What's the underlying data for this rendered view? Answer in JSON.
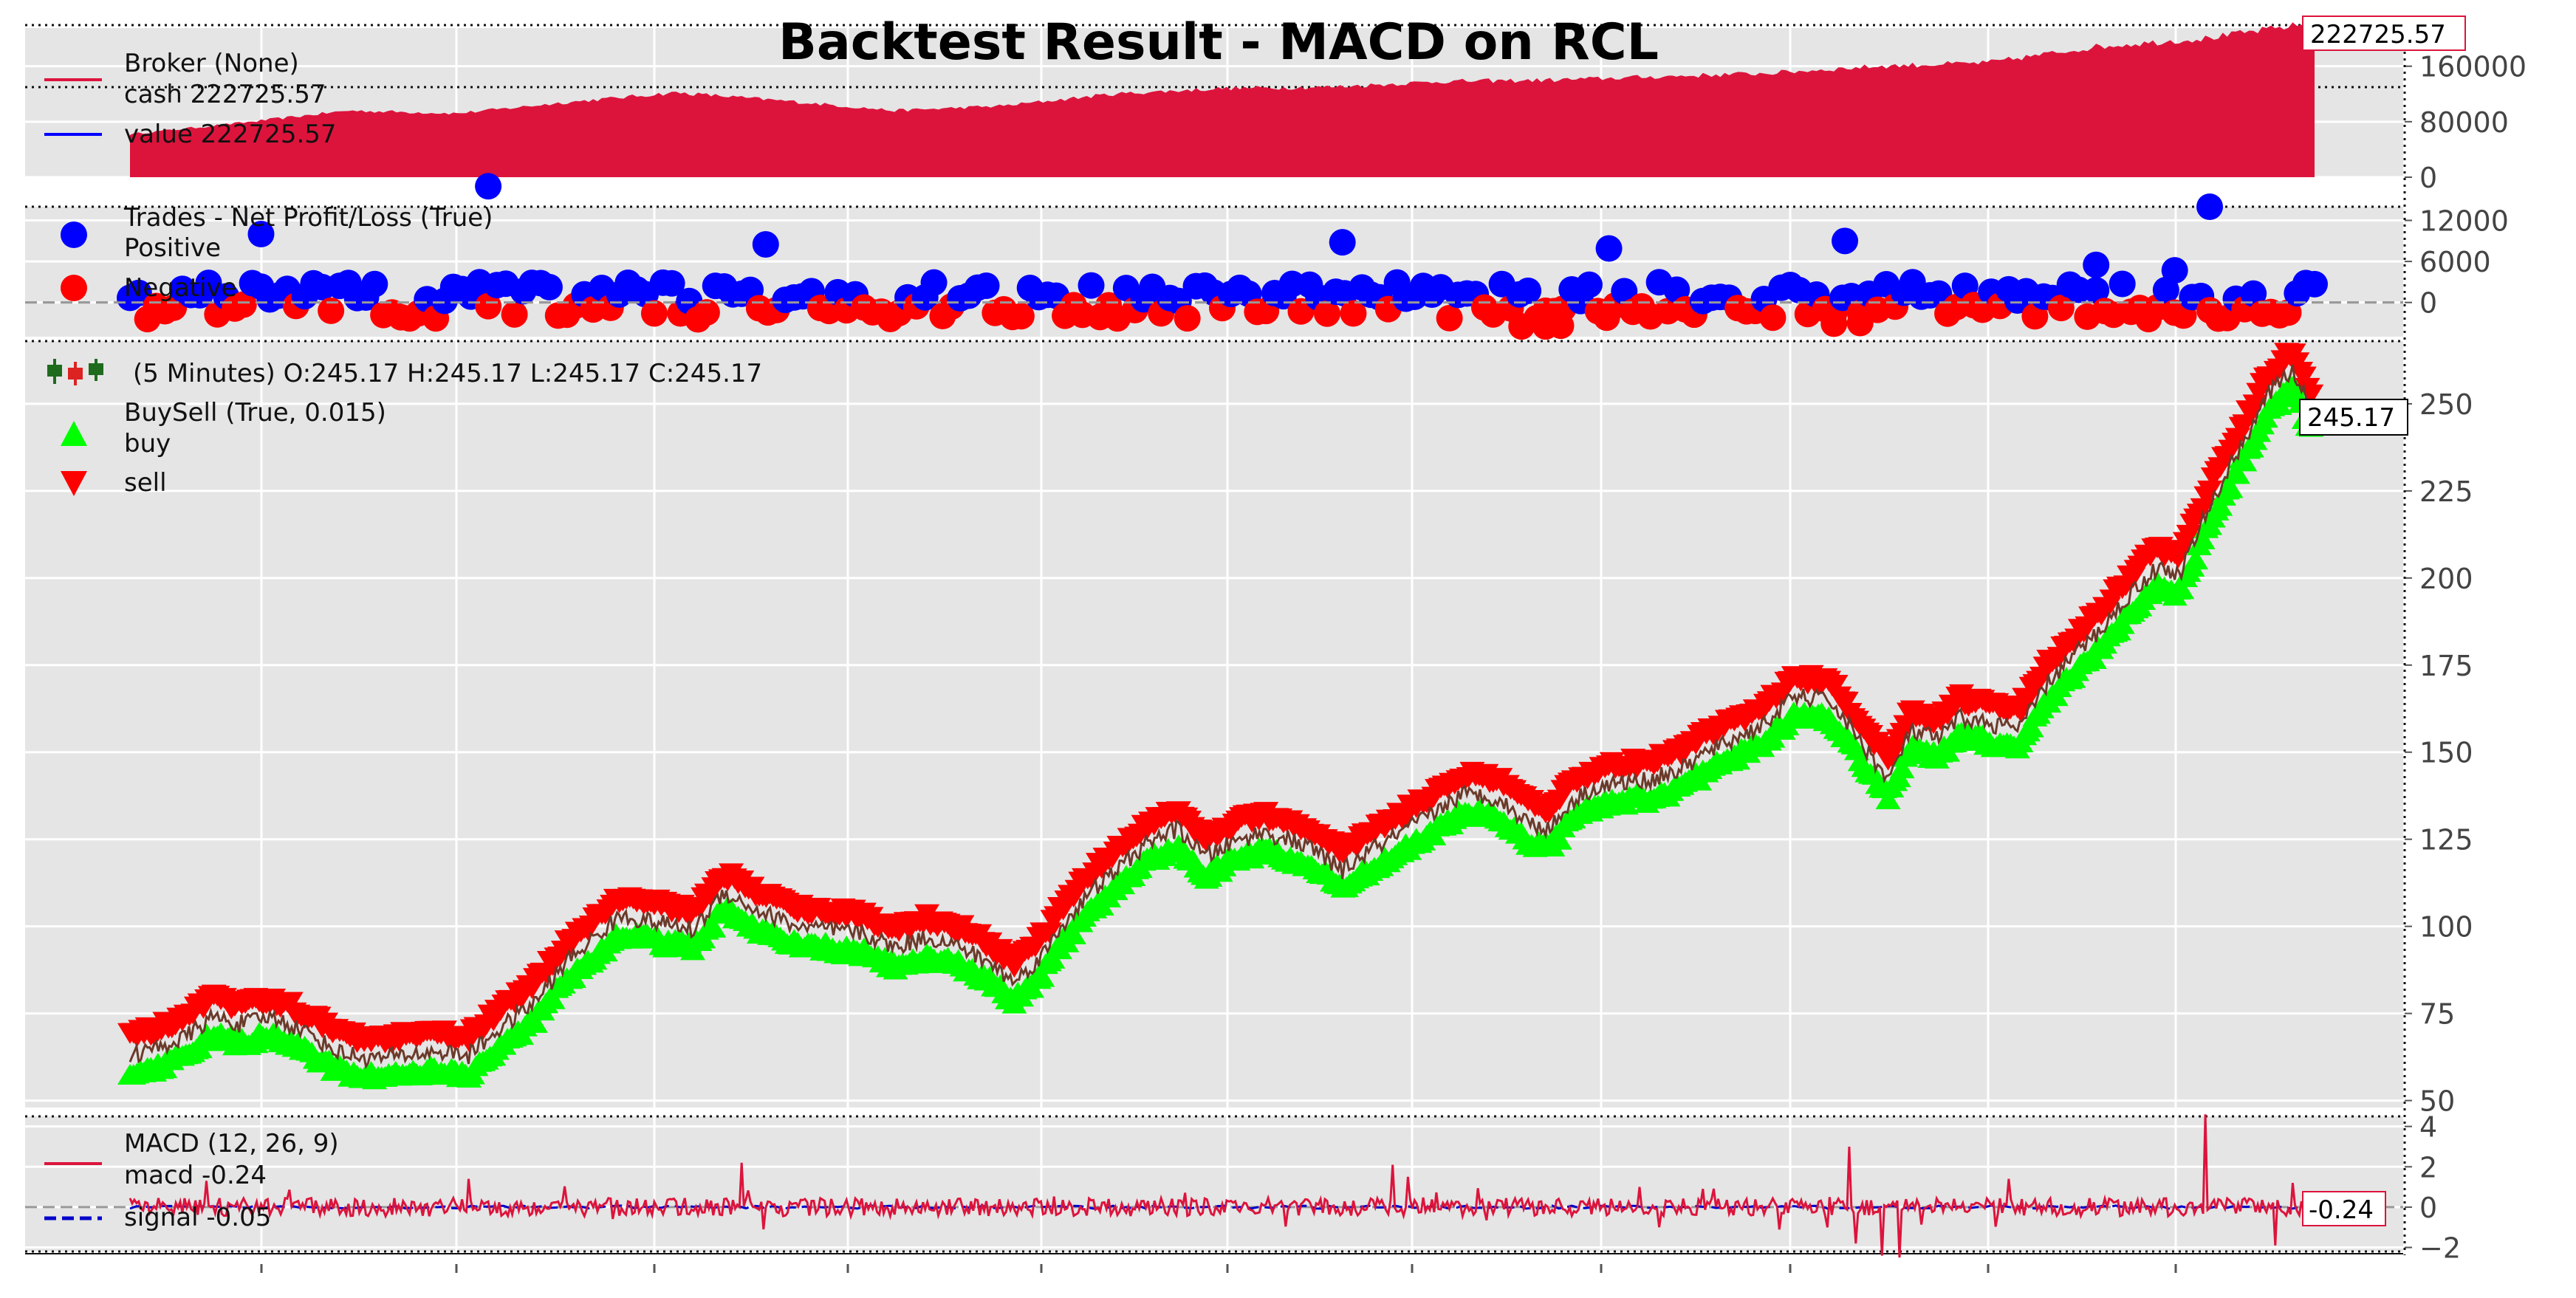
{
  "title": "Backtest Result - MACD on RCL",
  "colors": {
    "background": "#e5e5e5",
    "grid": "#ffffff",
    "broker": "#dc143c",
    "value_line": "#0000ff",
    "positive": "#0000ff",
    "negative": "#ff0000",
    "buy": "#00ff00",
    "sell": "#ff0000",
    "price_line": "#6b3a2a",
    "macd": "#dc143c",
    "signal": "#0000cc",
    "candle_icon": "#1e6b1e"
  },
  "chart_data": [
    {
      "type": "area",
      "panel": "broker",
      "legend_title": "Broker (None)",
      "legend": [
        "cash 222725.57",
        "value 222725.57"
      ],
      "last_value_label": "222725.57",
      "yticks": [
        "0",
        "80000",
        "160000"
      ],
      "ytick_values": [
        0,
        80000,
        160000
      ],
      "ylim": [
        0,
        215000
      ],
      "x": [
        0,
        50,
        100,
        150,
        200,
        250,
        300,
        350,
        400,
        450,
        500,
        550,
        600,
        650,
        700,
        750,
        800,
        850,
        900,
        950,
        1000
      ],
      "values": [
        62000,
        78000,
        96000,
        92000,
        108000,
        122000,
        110000,
        96000,
        103000,
        120000,
        128000,
        130000,
        138000,
        140000,
        145000,
        150000,
        160000,
        165000,
        188000,
        200000,
        222725.57
      ]
    },
    {
      "type": "scatter",
      "panel": "trades",
      "legend_title": "Trades - Net Profit/Loss (True)",
      "legend": [
        "Positive",
        "Negative"
      ],
      "yticks": [
        "0",
        "6000",
        "12000"
      ],
      "ytick_values": [
        0,
        6000,
        12000
      ],
      "ylim": [
        -5000,
        14000
      ],
      "outliers_positive": [
        {
          "x": 60,
          "y": 10000
        },
        {
          "x": 164,
          "y": 17000
        },
        {
          "x": 291,
          "y": 8500
        },
        {
          "x": 555,
          "y": 8800
        },
        {
          "x": 677,
          "y": 7900
        },
        {
          "x": 785,
          "y": 9000
        },
        {
          "x": 952,
          "y": 14000
        },
        {
          "x": 936,
          "y": 4700
        },
        {
          "x": 900,
          "y": 5500
        }
      ],
      "outliers_negative": [
        {
          "x": 637,
          "y": -3500
        },
        {
          "x": 648,
          "y": -3500
        },
        {
          "x": 655,
          "y": -3400
        },
        {
          "x": 780,
          "y": -3100
        },
        {
          "x": 792,
          "y": -3000
        }
      ]
    },
    {
      "type": "line",
      "panel": "price",
      "legend_title": "(5 Minutes) O:245.17 H:245.17 L:245.17 C:245.17",
      "legend": [
        "BuySell (True, 0.015)",
        "buy",
        "sell"
      ],
      "last_value_label": "245.17",
      "yticks": [
        "50",
        "75",
        "100",
        "125",
        "150",
        "175",
        "200",
        "225",
        "250"
      ],
      "ytick_values": [
        50,
        75,
        100,
        125,
        150,
        175,
        200,
        225,
        250
      ],
      "ylim": [
        48,
        268
      ],
      "x": [
        0,
        12,
        25,
        38,
        50,
        65,
        80,
        95,
        110,
        125,
        142,
        155,
        168,
        185,
        200,
        215,
        225,
        242,
        258,
        272,
        285,
        298,
        305,
        320,
        335,
        350,
        365,
        380,
        392,
        405,
        418,
        430,
        442,
        455,
        468,
        480,
        492,
        505,
        518,
        530,
        542,
        555,
        568,
        580,
        595,
        610,
        625,
        640,
        650,
        660,
        668,
        680,
        695,
        710,
        722,
        735,
        748,
        762,
        778,
        790,
        805,
        815,
        828,
        838,
        852,
        865,
        878,
        890,
        902,
        915,
        928,
        938,
        948,
        958,
        968,
        978,
        990,
        1000
      ],
      "values": [
        63,
        65,
        68,
        74,
        72,
        74,
        70,
        64,
        62,
        63,
        64,
        63,
        70,
        78,
        90,
        98,
        103,
        101,
        99,
        110,
        105,
        102,
        100,
        99,
        98,
        94,
        97,
        94,
        90,
        84,
        92,
        103,
        111,
        118,
        125,
        128,
        120,
        124,
        127,
        125,
        122,
        116,
        122,
        126,
        132,
        138,
        137,
        130,
        128,
        136,
        139,
        141,
        142,
        145,
        150,
        154,
        158,
        166,
        165,
        155,
        142,
        156,
        154,
        160,
        158,
        157,
        170,
        178,
        185,
        195,
        203,
        201,
        215,
        228,
        240,
        252,
        260,
        245.17
      ]
    },
    {
      "type": "line",
      "panel": "macd",
      "legend_title": "MACD (12, 26, 9)",
      "legend": [
        "macd -0.24",
        "signal -0.05"
      ],
      "last_value_label": "-0.24",
      "yticks": [
        "−2",
        "0",
        "2",
        "4"
      ],
      "ytick_values": [
        -2,
        0,
        2,
        4
      ],
      "ylim": [
        -2.2,
        4.5
      ],
      "spikes": [
        {
          "x": 35,
          "y": 1.3
        },
        {
          "x": 155,
          "y": 1.4
        },
        {
          "x": 280,
          "y": 2.2
        },
        {
          "x": 290,
          "y": -1.1
        },
        {
          "x": 578,
          "y": 2.1
        },
        {
          "x": 585,
          "y": 1.5
        },
        {
          "x": 700,
          "y": -1.0
        },
        {
          "x": 787,
          "y": 3.0
        },
        {
          "x": 790,
          "y": -1.8
        },
        {
          "x": 802,
          "y": -2.4
        },
        {
          "x": 810,
          "y": -2.5
        },
        {
          "x": 860,
          "y": 1.4
        },
        {
          "x": 950,
          "y": 4.6
        },
        {
          "x": 982,
          "y": -1.9
        },
        {
          "x": 990,
          "y": 1.2
        }
      ]
    }
  ]
}
